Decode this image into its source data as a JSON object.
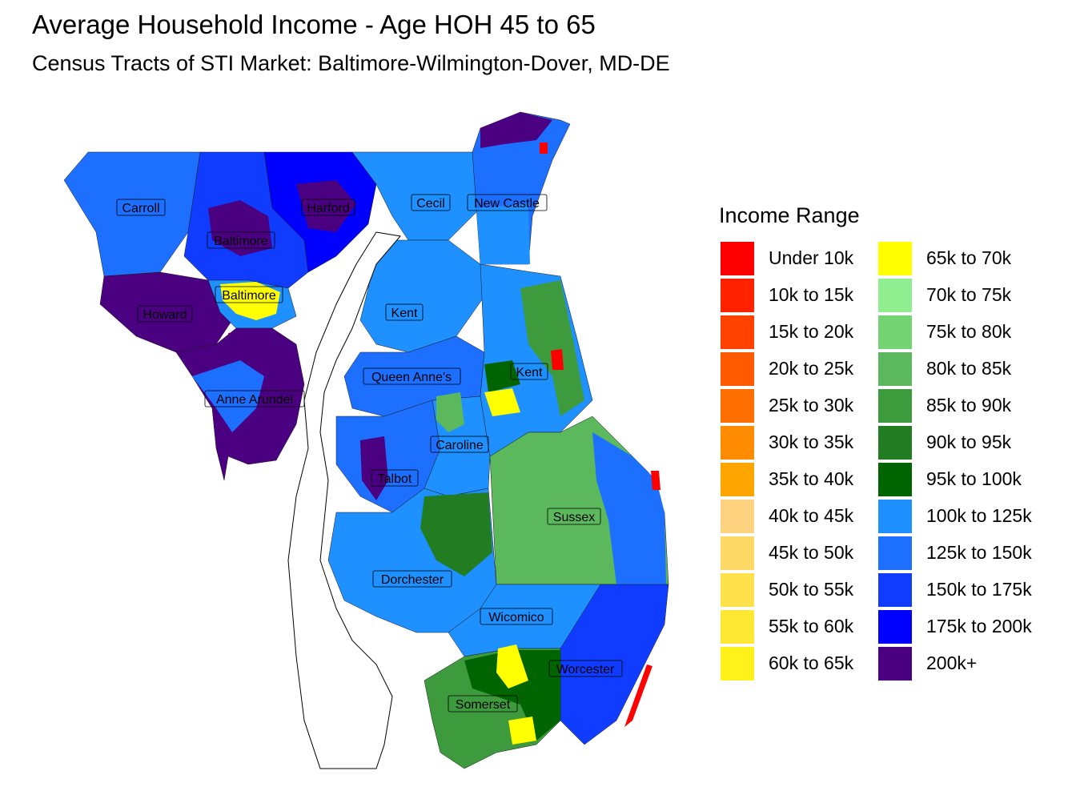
{
  "title": "Average Household Income - Age HOH 45 to 65",
  "subtitle": "Census Tracts of STI Market: Baltimore-Wilmington-Dover, MD-DE",
  "legend": {
    "title": "Income Range",
    "items": [
      {
        "label": "Under 10k",
        "color": "#ff0000"
      },
      {
        "label": "10k to 15k",
        "color": "#ff2100"
      },
      {
        "label": "15k to 20k",
        "color": "#ff4200"
      },
      {
        "label": "20k to 25k",
        "color": "#ff5a00"
      },
      {
        "label": "25k to 30k",
        "color": "#ff6f00"
      },
      {
        "label": "30k to 35k",
        "color": "#ff8c00"
      },
      {
        "label": "35k to 40k",
        "color": "#ffa500"
      },
      {
        "label": "40k to 45k",
        "color": "#ffd37f"
      },
      {
        "label": "45k to 50k",
        "color": "#ffd966"
      },
      {
        "label": "50k to 55k",
        "color": "#ffe14c"
      },
      {
        "label": "55k to 60k",
        "color": "#ffe833"
      },
      {
        "label": "60k to 65k",
        "color": "#fff21a"
      },
      {
        "label": "65k to 70k",
        "color": "#ffff00"
      },
      {
        "label": "70k to 75k",
        "color": "#90ee90"
      },
      {
        "label": "75k to 80k",
        "color": "#74d474"
      },
      {
        "label": "80k to 85k",
        "color": "#5cb85c"
      },
      {
        "label": "85k to 90k",
        "color": "#3d9b3d"
      },
      {
        "label": "90k to 95k",
        "color": "#227c22"
      },
      {
        "label": "95k to 100k",
        "color": "#006400"
      },
      {
        "label": "100k to 125k",
        "color": "#1e90ff"
      },
      {
        "label": "125k to 150k",
        "color": "#1c6fff"
      },
      {
        "label": "150k to 175k",
        "color": "#0f3cff"
      },
      {
        "label": "175k to 200k",
        "color": "#0000ff"
      },
      {
        "label": "200k+",
        "color": "#4b0082"
      }
    ]
  },
  "county_labels": [
    "Carroll",
    "Harford",
    "Cecil",
    "New Castle",
    "Baltimore",
    "Baltimore",
    "Howard",
    "Kent",
    "Kent",
    "Queen Anne's",
    "Anne Arundel",
    "Caroline",
    "Talbot",
    "Sussex",
    "Dorchester",
    "Wicomico",
    "Worcester",
    "Somerset"
  ]
}
